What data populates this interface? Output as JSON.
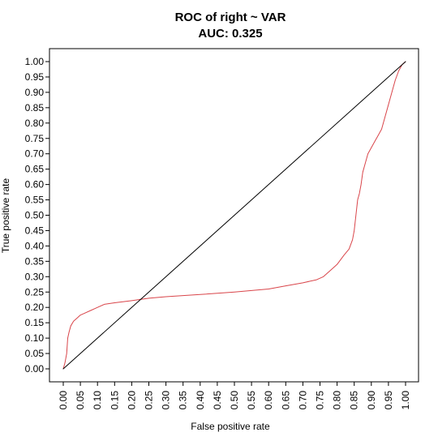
{
  "chart_data": {
    "type": "line",
    "title": "ROC of right ~ VAR",
    "subtitle": "AUC:  0.325",
    "xlabel": "False positive rate",
    "ylabel": "True positive rate",
    "xlim": [
      0,
      1
    ],
    "ylim": [
      0,
      1
    ],
    "grid": false,
    "legend": "none",
    "x_ticks": [
      "0.00",
      "0.05",
      "0.10",
      "0.15",
      "0.20",
      "0.25",
      "0.30",
      "0.35",
      "0.40",
      "0.45",
      "0.50",
      "0.55",
      "0.60",
      "0.65",
      "0.70",
      "0.75",
      "0.80",
      "0.85",
      "0.90",
      "0.95",
      "1.00"
    ],
    "y_ticks": [
      "0.00",
      "0.05",
      "0.10",
      "0.15",
      "0.20",
      "0.25",
      "0.30",
      "0.35",
      "0.40",
      "0.45",
      "0.50",
      "0.55",
      "0.60",
      "0.65",
      "0.70",
      "0.75",
      "0.80",
      "0.85",
      "0.90",
      "0.95",
      "1.00"
    ],
    "series": [
      {
        "color": "#d9454a",
        "x": [
          0.0,
          0.005,
          0.01,
          0.013,
          0.017,
          0.022,
          0.03,
          0.04,
          0.05,
          0.06,
          0.08,
          0.1,
          0.12,
          0.15,
          0.2,
          0.25,
          0.3,
          0.4,
          0.5,
          0.55,
          0.6,
          0.65,
          0.7,
          0.74,
          0.76,
          0.78,
          0.8,
          0.82,
          0.835,
          0.845,
          0.85,
          0.855,
          0.86,
          0.865,
          0.87,
          0.875,
          0.88,
          0.89,
          0.9,
          0.91,
          0.92,
          0.93,
          0.94,
          0.95,
          0.96,
          0.97,
          0.98,
          0.99,
          1.0
        ],
        "y": [
          0.0,
          0.02,
          0.05,
          0.1,
          0.12,
          0.14,
          0.155,
          0.165,
          0.175,
          0.18,
          0.19,
          0.2,
          0.21,
          0.215,
          0.222,
          0.23,
          0.235,
          0.242,
          0.25,
          0.255,
          0.26,
          0.27,
          0.28,
          0.29,
          0.3,
          0.32,
          0.34,
          0.37,
          0.39,
          0.42,
          0.45,
          0.5,
          0.55,
          0.57,
          0.6,
          0.64,
          0.66,
          0.7,
          0.72,
          0.74,
          0.76,
          0.78,
          0.82,
          0.86,
          0.9,
          0.94,
          0.97,
          0.99,
          1.0
        ]
      },
      {
        "color": "#000000",
        "x": [
          0,
          1
        ],
        "y": [
          0,
          1
        ]
      }
    ]
  }
}
